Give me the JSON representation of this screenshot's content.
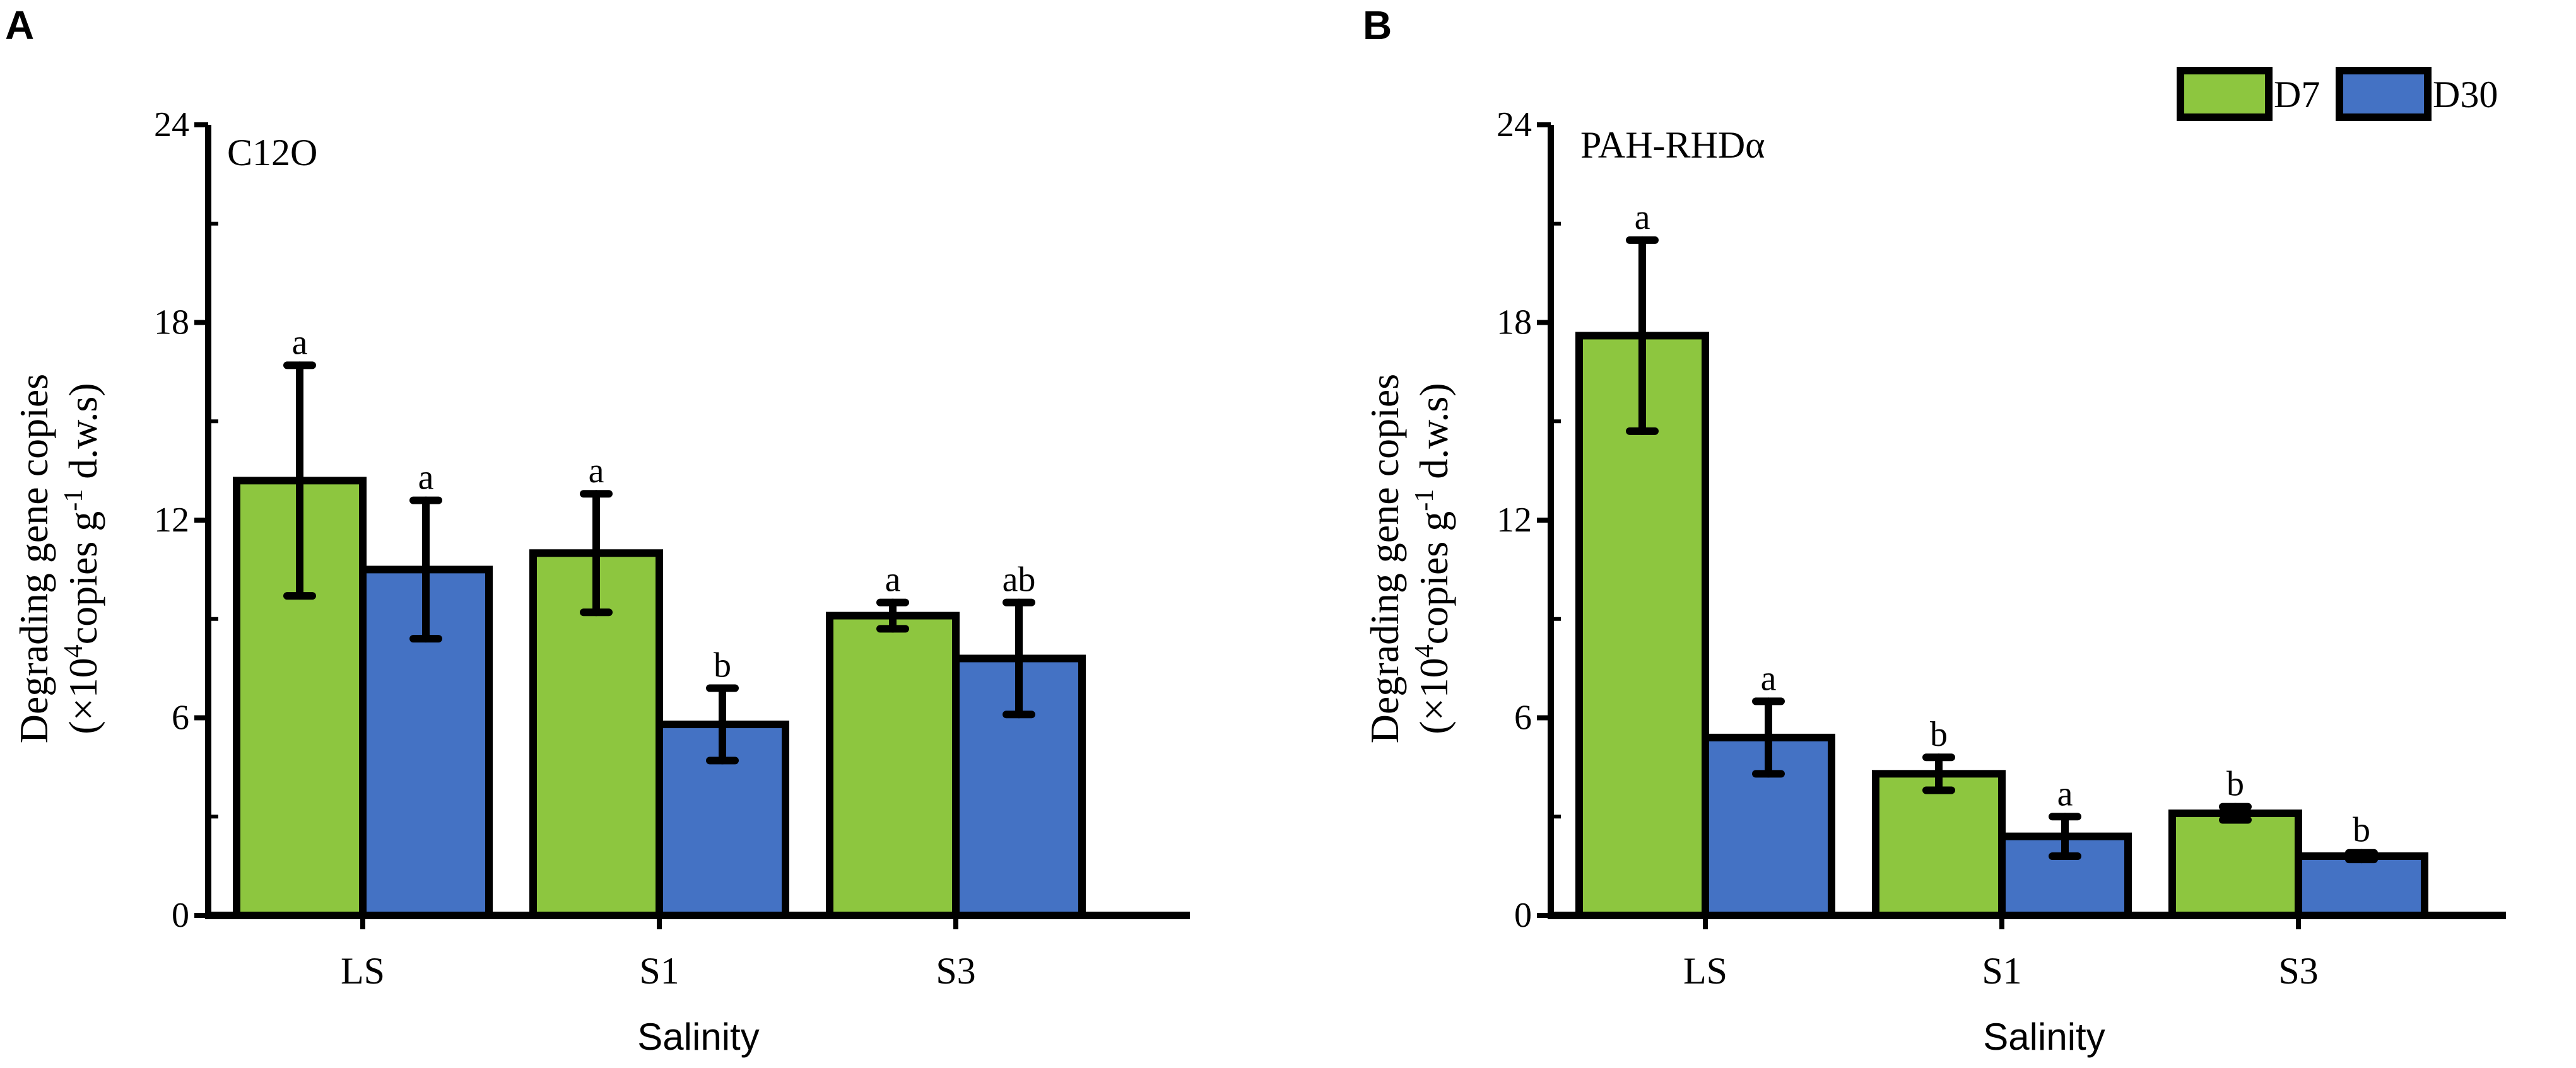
{
  "chart_data": [
    {
      "type": "bar",
      "panel": "A",
      "title": "C12O",
      "xlabel": "Salinity",
      "ylabel_line1": "Degrading gene copies",
      "ylabel_line2_pre": "(×10",
      "ylabel_line2_sup1": "4",
      "ylabel_line2_mid": "copies g",
      "ylabel_line2_sup2": "-1",
      "ylabel_line2_post": " d.w.s)",
      "ylim": [
        0,
        24
      ],
      "yticks": [
        "0",
        "6",
        "12",
        "18",
        "24"
      ],
      "categories": [
        "LS",
        "S1",
        "S3"
      ],
      "series": [
        {
          "name": "D7",
          "color": "#8dc63f",
          "values": [
            13.2,
            11.0,
            9.1
          ],
          "errors": [
            3.5,
            1.8,
            0.4
          ],
          "letters": [
            "a",
            "a",
            "a"
          ]
        },
        {
          "name": "D30",
          "color": "#4472c4",
          "values": [
            10.5,
            5.8,
            7.8
          ],
          "errors": [
            2.1,
            1.1,
            1.7
          ],
          "letters": [
            "a",
            "b",
            "ab"
          ]
        }
      ]
    },
    {
      "type": "bar",
      "panel": "B",
      "title": "PAH-RHDα",
      "xlabel": "Salinity",
      "ylabel_line1": "Degrading gene copies",
      "ylabel_line2_pre": "(×10",
      "ylabel_line2_sup1": "4",
      "ylabel_line2_mid": "copies g",
      "ylabel_line2_sup2": "-1",
      "ylabel_line2_post": " d.w.s)",
      "ylim": [
        0,
        24
      ],
      "yticks": [
        "0",
        "6",
        "12",
        "18",
        "24"
      ],
      "categories": [
        "LS",
        "S1",
        "S3"
      ],
      "series": [
        {
          "name": "D7",
          "color": "#8dc63f",
          "values": [
            17.6,
            4.3,
            3.1
          ],
          "errors": [
            2.9,
            0.5,
            0.2
          ],
          "letters": [
            "a",
            "b",
            "b"
          ]
        },
        {
          "name": "D30",
          "color": "#4472c4",
          "values": [
            5.4,
            2.4,
            1.8
          ],
          "errors": [
            1.1,
            0.6,
            0.1
          ],
          "letters": [
            "a",
            "a",
            "b"
          ]
        }
      ]
    }
  ],
  "legend": [
    {
      "name": "D7",
      "color": "#8dc63f"
    },
    {
      "name": "D30",
      "color": "#4472c4"
    }
  ]
}
